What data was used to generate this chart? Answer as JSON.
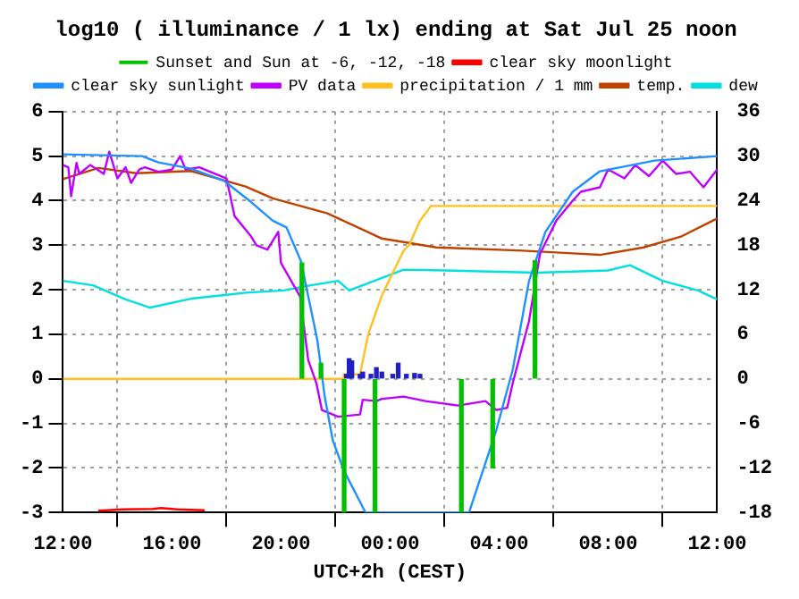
{
  "chart_data": {
    "type": "line",
    "title": "log10 ( illuminance / 1 lx) ending at Sat Jul 25 noon",
    "xlabel": "UTC+2h (CEST)",
    "xlim": [
      "--07-24T12:00",
      "--07-25T12:00"
    ],
    "xticks": [
      {
        "value": "--07-24T12:00",
        "label": "12:00"
      },
      {
        "value": "--07-24T16:00",
        "label": "16:00"
      },
      {
        "value": "--07-24T20:00",
        "label": "20:00"
      },
      {
        "value": "--07-25T00:00",
        "label": "00:00"
      },
      {
        "value": "--07-25T04:00",
        "label": "04:00"
      },
      {
        "value": "--07-25T08:00",
        "label": "08:00"
      },
      {
        "value": "--07-25T12:00",
        "label": "12:00"
      }
    ],
    "ylim": [
      -3,
      6
    ],
    "yticks": [
      -3,
      -2,
      -1,
      0,
      1,
      2,
      3,
      4,
      5,
      6
    ],
    "y2lim": [
      -18,
      36
    ],
    "y2ticks": [
      -18,
      -12,
      -6,
      0,
      6,
      12,
      18,
      24,
      30,
      36
    ],
    "grid": true,
    "legend": "top",
    "marker": "none",
    "series": [
      {
        "name": "Sunset and Sun at -6, -12, -18",
        "type": "bar",
        "color": "#00c000",
        "x": [
          "--07-24T20:46",
          "--07-24T21:28",
          "--07-24T22:19",
          "--07-24T23:27",
          "--07-25T02:37",
          "--07-25T03:46",
          "--07-25T05:19"
        ],
        "values": [
          2.6,
          0.35,
          -3,
          -3,
          -3,
          -2,
          2.65
        ]
      },
      {
        "name": "clear sky moonlight",
        "color": "#ff0000",
        "x": [
          "--07-24T13:18",
          "--07-24T14:12",
          "--07-24T15:18",
          "--07-24T15:36",
          "--07-24T16:12",
          "--07-24T17:12"
        ],
        "values": [
          -2.96,
          -2.93,
          -2.92,
          -2.9,
          -2.93,
          -2.95
        ]
      },
      {
        "name": "clear sky sunlight",
        "color": "#2090ff",
        "x": [
          "--07-24T12:00",
          "--07-24T14:54",
          "--07-24T15:30",
          "--07-24T16:42",
          "--07-24T17:54",
          "--07-24T18:48",
          "--07-24T19:42",
          "--07-24T20:12",
          "--07-24T20:44",
          "--07-24T21:20",
          "--07-24T21:36",
          "--07-24T21:54",
          "--07-24T22:18",
          "--07-24T23:06",
          "--07-25T02:54",
          "--07-25T03:54",
          "--07-25T04:30",
          "--07-25T05:06",
          "--07-25T05:42",
          "--07-25T06:42",
          "--07-25T07:42",
          "--07-25T09:42",
          "--07-25T12:00"
        ],
        "values": [
          5.04,
          5.0,
          4.86,
          4.72,
          4.45,
          4.02,
          3.55,
          3.4,
          2.64,
          0.87,
          -0.38,
          -1.38,
          -2.05,
          -3,
          -3,
          -1.15,
          0.2,
          2.2,
          3.3,
          4.2,
          4.66,
          4.9,
          5.0
        ]
      },
      {
        "name": "PV data",
        "color": "#c000ff",
        "x": [
          "--07-24T12:00",
          "--07-24T12:12",
          "--07-24T12:18",
          "--07-24T12:30",
          "--07-24T12:36",
          "--07-24T13:00",
          "--07-24T13:30",
          "--07-24T13:42",
          "--07-24T14:00",
          "--07-24T14:18",
          "--07-24T14:30",
          "--07-24T14:48",
          "--07-24T15:00",
          "--07-24T15:30",
          "--07-24T16:00",
          "--07-24T16:18",
          "--07-24T16:30",
          "--07-24T17:00",
          "--07-24T17:36",
          "--07-24T18:00",
          "--07-24T18:18",
          "--07-24T18:54",
          "--07-24T19:06",
          "--07-24T19:30",
          "--07-24T19:54",
          "--07-24T20:00",
          "--07-24T20:42",
          "--07-24T21:00",
          "--07-24T21:18",
          "--07-24T21:30",
          "--07-24T22:06",
          "--07-24T22:54",
          "--07-24T23:00",
          "--07-24T23:30",
          "--07-24T23:42",
          "--07-25T00:30",
          "--07-25T01:18",
          "--07-25T02:30",
          "--07-25T03:30",
          "--07-25T03:54",
          "--07-25T04:18",
          "--07-25T04:30",
          "--07-25T05:06",
          "--07-25T05:30",
          "--07-25T06:06",
          "--07-25T06:42",
          "--07-25T07:00",
          "--07-25T07:42",
          "--07-25T08:00",
          "--07-25T08:36",
          "--07-25T09:00",
          "--07-25T09:30",
          "--07-25T10:00",
          "--07-25T10:30",
          "--07-25T11:00",
          "--07-25T11:30",
          "--07-25T12:00"
        ],
        "values": [
          4.8,
          4.75,
          4.1,
          4.85,
          4.6,
          4.8,
          4.6,
          5.1,
          4.5,
          4.75,
          4.4,
          4.7,
          4.75,
          4.65,
          4.7,
          5.0,
          4.7,
          4.75,
          4.6,
          4.5,
          3.65,
          3.2,
          3.0,
          2.9,
          3.3,
          2.6,
          1.85,
          0.42,
          -0.1,
          -0.7,
          -0.85,
          -0.8,
          -0.47,
          -0.5,
          -0.45,
          -0.4,
          -0.5,
          -0.6,
          -0.5,
          -0.7,
          -0.65,
          -0.1,
          1.3,
          2.8,
          3.55,
          4.0,
          4.2,
          4.3,
          4.7,
          4.5,
          4.8,
          4.55,
          4.9,
          4.6,
          4.65,
          4.3,
          4.7
        ]
      },
      {
        "name": "precipitation / 1 mm",
        "color": "#ffc020",
        "x": [
          "--07-24T12:00",
          "--07-24T22:18",
          "--07-24T22:18",
          "--07-24T22:54",
          "--07-24T23:12",
          "--07-24T23:42",
          "--07-25T00:30",
          "--07-25T00:42",
          "--07-25T01:06",
          "--07-25T01:30",
          "--07-25T12:00"
        ],
        "values": [
          0,
          0,
          0.1,
          0.1,
          1.0,
          1.87,
          2.88,
          3.0,
          3.55,
          3.88,
          3.88
        ]
      },
      {
        "type": "bar",
        "color": "#2020c0",
        "x": [
          "--07-24T22:24",
          "--07-24T22:30",
          "--07-24T22:36",
          "--07-24T22:54",
          "--07-24T23:00",
          "--07-24T23:18",
          "--07-24T23:30",
          "--07-24T23:42",
          "--07-25T00:06",
          "--07-25T00:18",
          "--07-25T00:36",
          "--07-25T00:54",
          "--07-25T01:06"
        ],
        "values": [
          0.1,
          0.45,
          0.4,
          0.1,
          0.15,
          0.1,
          0.25,
          0.15,
          0.1,
          0.35,
          0.1,
          0.12,
          0.1
        ]
      },
      {
        "name": "temp.",
        "axis": "y2",
        "color": "#c04000",
        "x": [
          "--07-24T12:00",
          "--07-24T13:18",
          "--07-24T14:42",
          "--07-24T16:42",
          "--07-24T18:42",
          "--07-24T19:42",
          "--07-24T21:42",
          "--07-24T23:42",
          "--07-25T01:42",
          "--07-25T04:42",
          "--07-25T06:42",
          "--07-25T07:42",
          "--07-25T09:18",
          "--07-25T10:42",
          "--07-25T12:00"
        ],
        "values": [
          26.9,
          28.4,
          27.7,
          28,
          25.9,
          24.3,
          22.3,
          18.9,
          17.7,
          17.3,
          16.9,
          16.7,
          17.7,
          19.2,
          21.6
        ]
      },
      {
        "name": "dew",
        "axis": "y2",
        "color": "#00e0e0",
        "x": [
          "--07-24T12:00",
          "--07-24T13:06",
          "--07-24T14:18",
          "--07-24T15:12",
          "--07-24T16:42",
          "--07-24T18:42",
          "--07-24T20:06",
          "--07-24T21:06",
          "--07-24T22:06",
          "--07-24T22:30",
          "--07-25T00:30",
          "--07-25T02:00",
          "--07-25T05:24",
          "--07-25T08:00",
          "--07-25T08:48",
          "--07-25T10:00",
          "--07-25T11:18",
          "--07-25T12:00"
        ],
        "values": [
          13.2,
          12.6,
          10.7,
          9.6,
          10.8,
          11.6,
          11.9,
          12.6,
          13.2,
          11.9,
          14.7,
          14.6,
          14.3,
          14.6,
          15.3,
          13.2,
          11.9,
          10.7
        ]
      }
    ]
  }
}
